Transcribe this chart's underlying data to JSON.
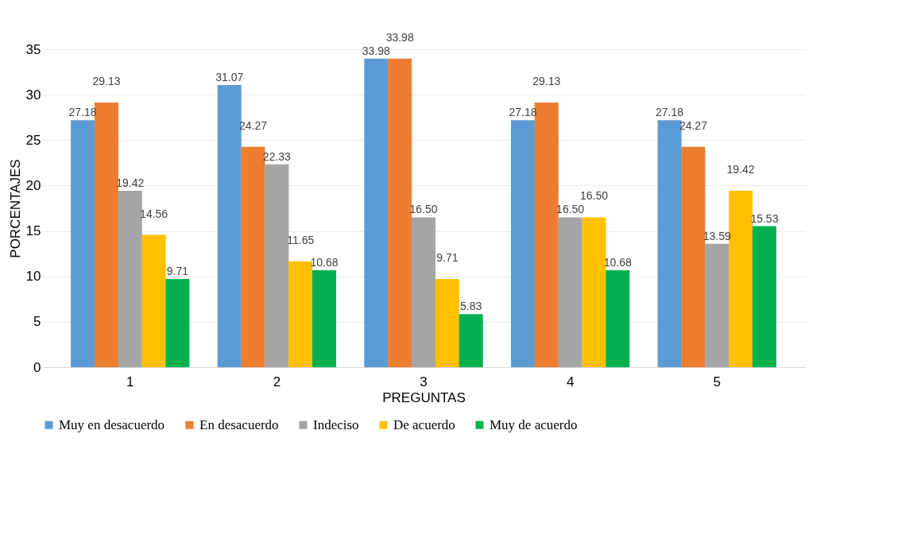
{
  "chart_data": {
    "type": "bar",
    "xlabel": "PREGUNTAS",
    "ylabel": "PORCENTAJES",
    "categories": [
      "1",
      "2",
      "3",
      "4",
      "5"
    ],
    "series": [
      {
        "name": "Muy en desacuerdo",
        "color": "#5b9bd5",
        "values": [
          27.18,
          31.07,
          33.98,
          27.18,
          27.18
        ],
        "value_labels": [
          "27.18",
          "31.07",
          "33.98",
          "27.18",
          "27.18"
        ]
      },
      {
        "name": "En desacuerdo",
        "color": "#ed7d31",
        "values": [
          29.13,
          24.27,
          33.98,
          29.13,
          24.27
        ],
        "value_labels": [
          "29.13",
          "24.27",
          "33.98",
          "29.13",
          "24.27"
        ]
      },
      {
        "name": "Indeciso",
        "color": "#a5a5a5",
        "values": [
          19.42,
          22.33,
          16.5,
          16.5,
          13.59
        ],
        "value_labels": [
          "19.42",
          "22.33",
          "16.50",
          "16.50",
          "13.59"
        ]
      },
      {
        "name": "De acuerdo",
        "color": "#ffc000",
        "values": [
          14.56,
          11.65,
          9.71,
          16.5,
          19.42
        ],
        "value_labels": [
          "14.56",
          "11.65",
          "9.71",
          "16.50",
          "19.42"
        ]
      },
      {
        "name": "Muy de acuerdo",
        "color": "#00b050",
        "values": [
          9.71,
          10.68,
          5.83,
          10.68,
          15.53
        ],
        "value_labels": [
          "9.71",
          "10.68",
          "5.83",
          "10.68",
          "15.53"
        ]
      }
    ],
    "ylim": [
      0,
      35
    ],
    "yticks": [
      0,
      5,
      10,
      15,
      20,
      25,
      30,
      35
    ],
    "grid": "y",
    "legend": "bottom"
  }
}
